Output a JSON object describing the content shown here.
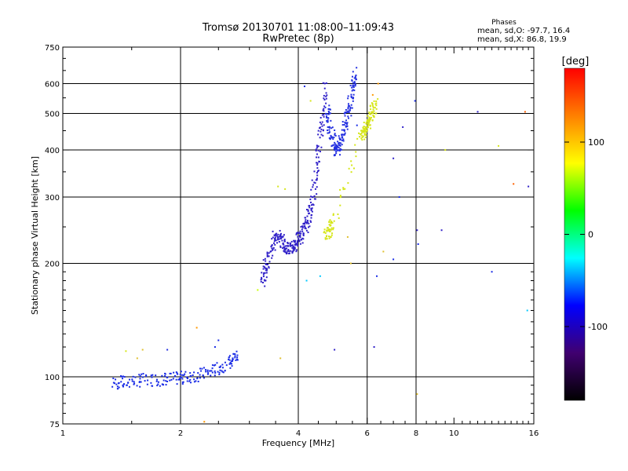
{
  "chart_data": {
    "type": "scatter",
    "title": "Tromsø 20130701 11:08:00–11:09:43",
    "subtitle": "RwPretec (8p)",
    "xlabel": "Frequency [MHz]",
    "ylabel": "Stationary phase Virtual Height [km]",
    "x_scale": "log",
    "y_scale": "log",
    "xlim": [
      1,
      16
    ],
    "ylim": [
      75,
      750
    ],
    "x_ticks": [
      1,
      2,
      4,
      6,
      8,
      10,
      16
    ],
    "y_ticks": [
      75,
      100,
      200,
      300,
      400,
      500,
      600,
      750
    ],
    "x_gridlines": [
      2,
      4,
      6,
      8
    ],
    "y_gridlines": [
      100,
      200,
      300,
      400,
      500,
      600
    ],
    "grid": true,
    "stats": {
      "heading": "Phases",
      "line_o": "mean, sd,O: -97.7, 16.4",
      "line_x": "mean, sd,X:  86.8, 19.9"
    },
    "colorbar": {
      "label": "[deg]",
      "range": [
        -180,
        180
      ],
      "ticks": [
        100,
        0,
        -100
      ],
      "colors": [
        "#ff0000",
        "#ff8000",
        "#ffff00",
        "#00ff00",
        "#00ffff",
        "#0000ff",
        "#400070",
        "#000000"
      ]
    },
    "series": [
      {
        "phase": -100,
        "color": "#1a2ce6",
        "trace": [
          [
            1.35,
            96
          ],
          [
            1.45,
            97
          ],
          [
            1.6,
            98
          ],
          [
            1.8,
            98.5
          ],
          [
            1.95,
            99
          ],
          [
            2.1,
            100
          ],
          [
            2.3,
            102
          ],
          [
            2.5,
            105
          ],
          [
            2.7,
            110
          ],
          [
            2.8,
            114
          ]
        ]
      },
      {
        "phase": -115,
        "color": "#3020c8",
        "trace": [
          [
            3.25,
            178
          ],
          [
            3.3,
            195
          ],
          [
            3.4,
            215
          ],
          [
            3.5,
            240
          ],
          [
            3.6,
            232
          ],
          [
            3.7,
            222
          ],
          [
            3.8,
            218
          ],
          [
            3.9,
            222
          ],
          [
            4.0,
            232
          ],
          [
            4.1,
            240
          ],
          [
            4.2,
            255
          ],
          [
            4.3,
            275
          ],
          [
            4.4,
            320
          ],
          [
            4.5,
            400
          ],
          [
            4.6,
            480
          ],
          [
            4.7,
            600
          ]
        ]
      },
      {
        "phase": -110,
        "color": "#2430e0",
        "trace": [
          [
            4.75,
            520
          ],
          [
            4.8,
            470
          ],
          [
            4.9,
            430
          ],
          [
            5.0,
            400
          ],
          [
            5.1,
            410
          ],
          [
            5.2,
            440
          ],
          [
            5.3,
            480
          ],
          [
            5.4,
            520
          ],
          [
            5.5,
            580
          ],
          [
            5.6,
            640
          ]
        ]
      },
      {
        "phase": 85,
        "color": "#d6e61a",
        "trace": [
          [
            4.7,
            240
          ],
          [
            4.8,
            245
          ],
          [
            4.9,
            255
          ],
          [
            5.8,
            440
          ],
          [
            5.9,
            450
          ],
          [
            6.0,
            460
          ],
          [
            6.1,
            480
          ],
          [
            6.2,
            510
          ],
          [
            6.3,
            540
          ]
        ]
      }
    ],
    "isolated_points": [
      [
        2.45,
        120,
        "#1a2ce6"
      ],
      [
        2.5,
        125,
        "#1a2ce6"
      ],
      [
        1.85,
        118,
        "#2430e0"
      ],
      [
        1.45,
        117,
        "#d6e61a"
      ],
      [
        1.6,
        118,
        "#e0c030"
      ],
      [
        1.55,
        112,
        "#e0c030"
      ],
      [
        2.2,
        135,
        "#ff9900"
      ],
      [
        2.3,
        76,
        "#ff9900"
      ],
      [
        2.1,
        75,
        "#ff9900"
      ],
      [
        3.15,
        170,
        "#c8ff00"
      ],
      [
        3.55,
        320,
        "#d6e61a"
      ],
      [
        3.6,
        112,
        "#e0c030"
      ],
      [
        4.15,
        590,
        "#1a2ce6"
      ],
      [
        4.3,
        540,
        "#d6e61a"
      ],
      [
        4.55,
        185,
        "#00c8ff"
      ],
      [
        4.95,
        118,
        "#3020c8"
      ],
      [
        5.05,
        270,
        "#d6e61a"
      ],
      [
        5.35,
        235,
        "#e0c030"
      ],
      [
        5.45,
        200,
        "#e0c030"
      ],
      [
        5.65,
        465,
        "#1a2ce6"
      ],
      [
        6.25,
        120,
        "#3020c8"
      ],
      [
        6.35,
        185,
        "#1a2ce6"
      ],
      [
        6.6,
        215,
        "#e0c030"
      ],
      [
        7.0,
        205,
        "#1a2ce6"
      ],
      [
        7.25,
        300,
        "#1a2ce6"
      ],
      [
        7.4,
        460,
        "#3020c8"
      ],
      [
        7.95,
        540,
        "#1a2ce6"
      ],
      [
        8.05,
        245,
        "#3020c8"
      ],
      [
        8.1,
        225,
        "#1a2ce6"
      ],
      [
        8.05,
        90,
        "#e0c030"
      ],
      [
        7.0,
        380,
        "#3020c8"
      ],
      [
        9.3,
        245,
        "#3020c8"
      ],
      [
        9.5,
        400,
        "#d6e61a"
      ],
      [
        11.5,
        505,
        "#3020c8"
      ],
      [
        12.5,
        190,
        "#1a2ce6"
      ],
      [
        13.0,
        410,
        "#d6e61a"
      ],
      [
        14.2,
        325,
        "#ff6000"
      ],
      [
        15.2,
        505,
        "#ff6000"
      ],
      [
        15.5,
        320,
        "#3020c8"
      ],
      [
        15.4,
        150,
        "#00c8ff"
      ],
      [
        6.4,
        600,
        "#ff9900"
      ],
      [
        6.2,
        560,
        "#ff9900"
      ],
      [
        4.85,
        235,
        "#d6e61a"
      ],
      [
        3.7,
        315,
        "#d6e61a"
      ],
      [
        4.2,
        180,
        "#00c8ff"
      ]
    ]
  }
}
